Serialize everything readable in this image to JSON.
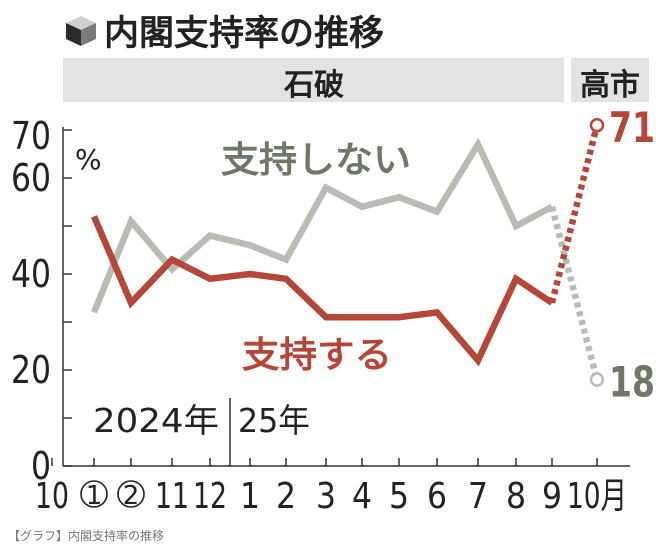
{
  "header": {
    "title": "内閣支持率の推移",
    "icon": "cube-icon"
  },
  "eras": [
    {
      "label": "石破"
    },
    {
      "label": "高市"
    }
  ],
  "footer": {
    "caption": "【グラフ】内閣支持率の推移"
  },
  "chart_data": {
    "type": "line",
    "title": "内閣支持率の推移",
    "ylabel": "%",
    "ylim": [
      0,
      70
    ],
    "yticks": [
      "0",
      "20",
      "40",
      "60",
      "70"
    ],
    "grid": false,
    "categories": [
      "10",
      "①",
      "②",
      "11",
      "12",
      "1",
      "2",
      "3",
      "4",
      "5",
      "6",
      "7",
      "8",
      "9",
      "10月"
    ],
    "year_labels": [
      "2024年",
      "25年"
    ],
    "series": [
      {
        "name": "支持しない",
        "color": "#b8bdb3",
        "label_color": "#6f7766",
        "values": [
          null,
          32,
          51,
          41,
          48,
          46,
          43,
          58,
          54,
          56,
          53,
          67,
          50,
          54,
          18
        ],
        "end_label": "18"
      },
      {
        "name": "支持する",
        "color": "#b54738",
        "label_color": "#b54738",
        "values": [
          null,
          52,
          34,
          43,
          39,
          40,
          39,
          31,
          31,
          31,
          32,
          22,
          39,
          34,
          71
        ],
        "end_label": "71"
      }
    ],
    "dashed_last_segment": true
  }
}
